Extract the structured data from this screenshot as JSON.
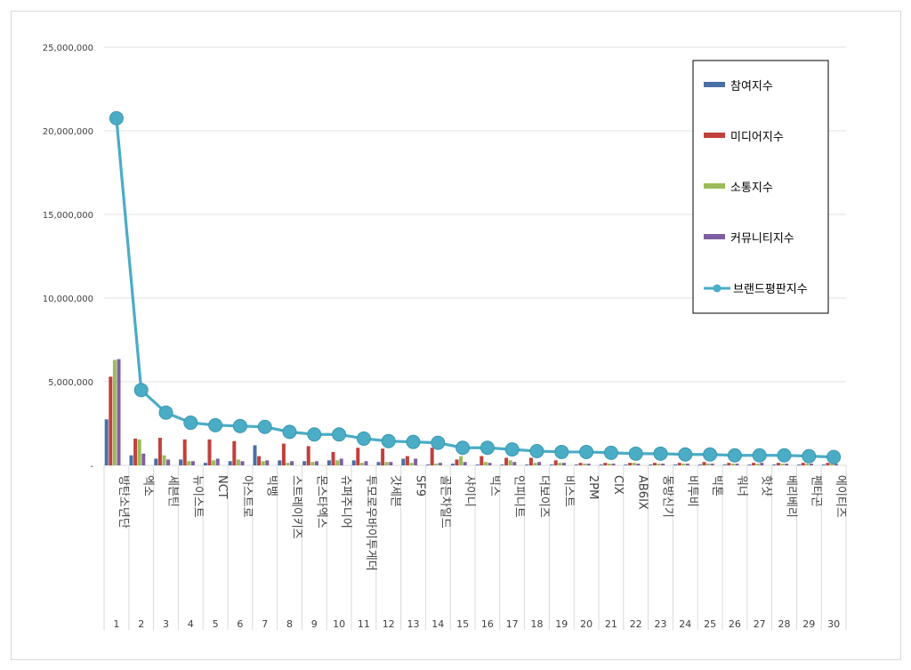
{
  "chart_data": {
    "type": "bar",
    "colors": {
      "참여지수": "#4a6fa5",
      "미디어지수": "#c0413c",
      "소통지수": "#9bbb59",
      "커뮤니티지수": "#7e5fa3",
      "브랜드평판지수": "#4bacc6"
    },
    "ylim": [
      0,
      25000000
    ],
    "yticks": [
      0,
      5000000,
      10000000,
      15000000,
      20000000,
      25000000
    ],
    "ytick_labels": [
      "-",
      "5,000,000",
      "10,000,000",
      "15,000,000",
      "20,000,000",
      "25,000,000"
    ],
    "grid": true,
    "legend_position": "top-right",
    "categories": [
      "방탄소년단",
      "엑소",
      "세븐틴",
      "뉴이스트",
      "NCT",
      "아스트로",
      "빅뱅",
      "스트레이키즈",
      "몬스타엑스",
      "슈퍼주니어",
      "투모로우바이투게더",
      "갓세븐",
      "SF9",
      "골든차일드",
      "샤이니",
      "빅스",
      "인피니트",
      "더보이즈",
      "비스트",
      "2PM",
      "CIX",
      "AB6IX",
      "동방신기",
      "비투비",
      "빅톤",
      "워너",
      "핫샷",
      "베리베리",
      "펜타곤",
      "에이티즈"
    ],
    "ranks": [
      "1",
      "2",
      "3",
      "4",
      "5",
      "6",
      "7",
      "8",
      "9",
      "10",
      "11",
      "12",
      "13",
      "14",
      "15",
      "16",
      "17",
      "18",
      "19",
      "20",
      "21",
      "22",
      "23",
      "24",
      "25",
      "26",
      "27",
      "28",
      "29",
      "30"
    ],
    "series": [
      {
        "name": "참여지수",
        "kind": "bar",
        "values": [
          2750000,
          600000,
          400000,
          350000,
          150000,
          250000,
          1200000,
          300000,
          250000,
          300000,
          300000,
          200000,
          400000,
          50000,
          100000,
          50000,
          50000,
          50000,
          50000,
          50000,
          50000,
          50000,
          50000,
          50000,
          50000,
          50000,
          50000,
          50000,
          50000,
          50000
        ]
      },
      {
        "name": "미디어지수",
        "kind": "bar",
        "values": [
          5300000,
          1600000,
          1650000,
          1550000,
          1550000,
          1450000,
          550000,
          1300000,
          1150000,
          800000,
          1050000,
          1000000,
          550000,
          1050000,
          350000,
          550000,
          450000,
          450000,
          300000,
          150000,
          150000,
          150000,
          150000,
          150000,
          200000,
          150000,
          150000,
          150000,
          150000,
          150000
        ]
      },
      {
        "name": "소통지수",
        "kind": "bar",
        "values": [
          6300000,
          1550000,
          600000,
          250000,
          300000,
          350000,
          250000,
          150000,
          200000,
          300000,
          150000,
          200000,
          150000,
          100000,
          550000,
          200000,
          300000,
          150000,
          150000,
          100000,
          100000,
          150000,
          100000,
          100000,
          100000,
          100000,
          100000,
          100000,
          100000,
          100000
        ]
      },
      {
        "name": "커뮤니티지수",
        "kind": "bar",
        "values": [
          6350000,
          700000,
          350000,
          250000,
          400000,
          250000,
          300000,
          250000,
          250000,
          400000,
          250000,
          200000,
          400000,
          150000,
          200000,
          150000,
          200000,
          200000,
          150000,
          100000,
          100000,
          100000,
          100000,
          100000,
          100000,
          100000,
          150000,
          100000,
          100000,
          100000
        ]
      },
      {
        "name": "브랜드평판지수",
        "kind": "line",
        "values": [
          20750000,
          4500000,
          3150000,
          2550000,
          2400000,
          2350000,
          2300000,
          2000000,
          1850000,
          1850000,
          1600000,
          1450000,
          1400000,
          1350000,
          1050000,
          1050000,
          950000,
          850000,
          800000,
          800000,
          750000,
          700000,
          700000,
          650000,
          650000,
          600000,
          600000,
          600000,
          550000,
          500000
        ]
      }
    ]
  }
}
